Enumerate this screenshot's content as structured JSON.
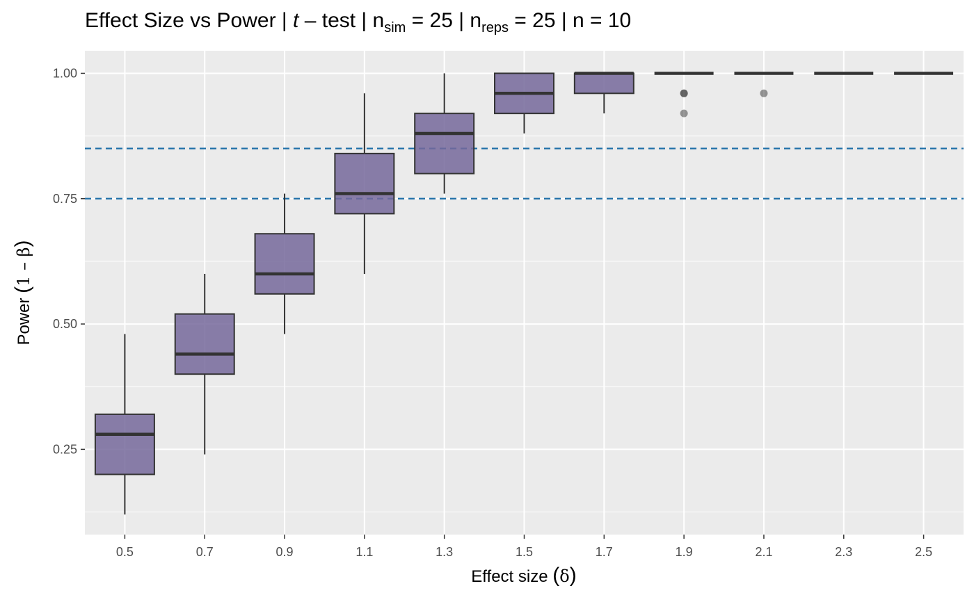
{
  "chart_data": {
    "type": "boxplot",
    "title": {
      "prefix": "Effect Size vs Power | ",
      "test_name": "t",
      "test_suffix": " – test | n",
      "nsim_subscript": "sim",
      "nsim_value": " = 25 | n",
      "nreps_subscript": "reps",
      "nreps_value": " = 25 | n = 10"
    },
    "xlabel": {
      "text": "Effect size ",
      "symbol": "δ"
    },
    "ylabel": {
      "text": "Power ",
      "symbol": "1 – β"
    },
    "ylim": [
      0.08,
      1.045
    ],
    "y_ticks": [
      0.25,
      0.5,
      0.75,
      1.0
    ],
    "y_tick_labels": [
      "0.25",
      "0.50",
      "0.75",
      "1.00"
    ],
    "categories": [
      "0.5",
      "0.7",
      "0.9",
      "1.1",
      "1.3",
      "1.5",
      "1.7",
      "1.9",
      "2.1",
      "2.3",
      "2.5"
    ],
    "boxes": [
      {
        "x": "0.5",
        "whisker_low": 0.12,
        "q1": 0.2,
        "median": 0.28,
        "q3": 0.32,
        "whisker_high": 0.48,
        "outliers": []
      },
      {
        "x": "0.7",
        "whisker_low": 0.24,
        "q1": 0.4,
        "median": 0.44,
        "q3": 0.52,
        "whisker_high": 0.6,
        "outliers": []
      },
      {
        "x": "0.9",
        "whisker_low": 0.48,
        "q1": 0.56,
        "median": 0.6,
        "q3": 0.68,
        "whisker_high": 0.76,
        "outliers": []
      },
      {
        "x": "1.1",
        "whisker_low": 0.6,
        "q1": 0.72,
        "median": 0.76,
        "q3": 0.84,
        "whisker_high": 0.96,
        "outliers": []
      },
      {
        "x": "1.3",
        "whisker_low": 0.76,
        "q1": 0.8,
        "median": 0.88,
        "q3": 0.92,
        "whisker_high": 1.0,
        "outliers": []
      },
      {
        "x": "1.5",
        "whisker_low": 0.88,
        "q1": 0.92,
        "median": 0.96,
        "q3": 1.0,
        "whisker_high": 1.0,
        "outliers": []
      },
      {
        "x": "1.7",
        "whisker_low": 0.92,
        "q1": 0.96,
        "median": 1.0,
        "q3": 1.0,
        "whisker_high": 1.0,
        "outliers": []
      },
      {
        "x": "1.9",
        "whisker_low": 1.0,
        "q1": 1.0,
        "median": 1.0,
        "q3": 1.0,
        "whisker_high": 1.0,
        "outliers": [
          0.96,
          0.96,
          0.92
        ]
      },
      {
        "x": "2.1",
        "whisker_low": 1.0,
        "q1": 1.0,
        "median": 1.0,
        "q3": 1.0,
        "whisker_high": 1.0,
        "outliers": [
          0.96
        ]
      },
      {
        "x": "2.3",
        "whisker_low": 1.0,
        "q1": 1.0,
        "median": 1.0,
        "q3": 1.0,
        "whisker_high": 1.0,
        "outliers": []
      },
      {
        "x": "2.5",
        "whisker_low": 1.0,
        "q1": 1.0,
        "median": 1.0,
        "q3": 1.0,
        "whisker_high": 1.0,
        "outliers": []
      }
    ],
    "reference_lines": [
      0.75,
      0.85
    ],
    "grid": true,
    "legend": "none",
    "colors": {
      "panel": "#ebebeb",
      "grid_major": "#ffffff",
      "box_fill": "#76699b",
      "box_fill_opacity": 0.85,
      "box_stroke": "#333333",
      "reference_line": "#1f6fa8",
      "outlier": "#333333"
    }
  }
}
